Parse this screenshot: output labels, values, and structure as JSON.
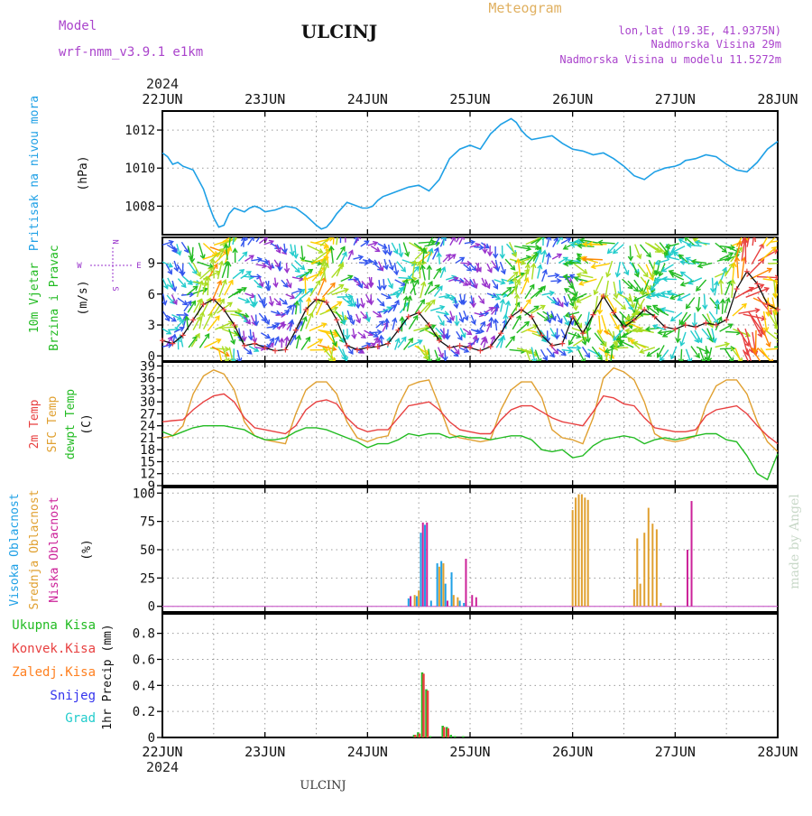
{
  "header": {
    "model_label": "Model",
    "model_name": "wrf-nmm_v3.9.1 e1km",
    "station": "ULCINJ",
    "meteogram": "Meteogram",
    "lonlat": "lon,lat (19.3E, 41.9375N)",
    "elev": "Nadmorska Visina 29m",
    "elev_model": "Nadmorska Visina u modelu 11.5272m",
    "year_top": "2024",
    "year_bottom": "2024",
    "footer_station": "ULCINJ",
    "credit": "made by Angel"
  },
  "colors": {
    "pressure": "#1ea0e6",
    "wind_label": "#22bb22",
    "temp2m": "#e84040",
    "sfc_temp": "#e0a030",
    "dewpoint": "#22bb22",
    "high_cloud": "#1ea0e6",
    "mid_cloud": "#e0a030",
    "low_cloud": "#cc2299",
    "total_precip": "#22bb22",
    "conv_precip": "#e84040",
    "frozen_precip": "#ff8020",
    "snow": "#3333ee",
    "hail": "#22cccc",
    "wind_compass": "#9933cc",
    "header_purple": "#aa44cc",
    "header_orange": "#e0b060"
  },
  "chart_data": [
    {
      "id": "pressure",
      "type": "line",
      "ylabel_lines": [
        "Pritisak na nivou mora",
        "(hPa)"
      ],
      "ylim": [
        1006.5,
        1013
      ],
      "yticks": [
        1008,
        1010,
        1012
      ],
      "x_tick_labels": [
        "22JUN",
        "23JUN",
        "24JUN",
        "25JUN",
        "26JUN",
        "27JUN",
        "28JUN"
      ],
      "series": [
        {
          "x": [
            0,
            0.05,
            0.1,
            0.15,
            0.2,
            0.3,
            0.4,
            0.45,
            0.5,
            0.55,
            0.6,
            0.65,
            0.7,
            0.75,
            0.8,
            0.85,
            0.9,
            0.95,
            1.0,
            1.1,
            1.2,
            1.3,
            1.4,
            1.5,
            1.55,
            1.6,
            1.65,
            1.7,
            1.8,
            1.85,
            1.9,
            1.95,
            2.0,
            2.05,
            2.1,
            2.15,
            2.2,
            2.3,
            2.4,
            2.5,
            2.6,
            2.7,
            2.8,
            2.9,
            3.0,
            3.1,
            3.2,
            3.3,
            3.4,
            3.45,
            3.5,
            3.55,
            3.6,
            3.7,
            3.8,
            3.9,
            4.0,
            4.1,
            4.2,
            4.3,
            4.4,
            4.5,
            4.6,
            4.7,
            4.8,
            4.9,
            5.0,
            5.05,
            5.1,
            5.2,
            5.3,
            5.4,
            5.5,
            5.6,
            5.7,
            5.8,
            5.9,
            6.0
          ],
          "values": [
            1010.8,
            1010.6,
            1010.2,
            1010.3,
            1010.1,
            1009.9,
            1008.9,
            1008.1,
            1007.4,
            1006.9,
            1007.0,
            1007.6,
            1007.9,
            1007.8,
            1007.7,
            1007.9,
            1008.0,
            1007.9,
            1007.7,
            1007.8,
            1008.0,
            1007.9,
            1007.5,
            1007.0,
            1006.8,
            1006.9,
            1007.2,
            1007.6,
            1008.2,
            1008.1,
            1008.0,
            1007.9,
            1007.9,
            1008.0,
            1008.3,
            1008.5,
            1008.6,
            1008.8,
            1009.0,
            1009.1,
            1008.8,
            1009.4,
            1010.5,
            1011.0,
            1011.2,
            1011.0,
            1011.8,
            1012.3,
            1012.6,
            1012.4,
            1012.0,
            1011.7,
            1011.5,
            1011.6,
            1011.7,
            1011.3,
            1011.0,
            1010.9,
            1010.7,
            1010.8,
            1010.5,
            1010.1,
            1009.6,
            1009.4,
            1009.8,
            1010.0,
            1010.1,
            1010.2,
            1010.4,
            1010.5,
            1010.7,
            1010.6,
            1010.2,
            1009.9,
            1009.8,
            1010.3,
            1011.0,
            1011.4
          ]
        }
      ]
    },
    {
      "id": "wind",
      "type": "line",
      "ylabel_lines": [
        "10m Vjetar",
        "Brzina i Pravac",
        "(m/s)"
      ],
      "ylim": [
        -0.5,
        11.5
      ],
      "yticks": [
        0,
        3,
        6,
        9
      ],
      "compass": {
        "n": "N",
        "s": "S",
        "e": "E",
        "w": "W"
      },
      "series": [
        {
          "name": "speed",
          "x": [
            0,
            0.1,
            0.2,
            0.3,
            0.4,
            0.5,
            0.6,
            0.7,
            0.8,
            0.9,
            1.0,
            1.1,
            1.2,
            1.3,
            1.4,
            1.5,
            1.6,
            1.7,
            1.8,
            1.9,
            2.0,
            2.1,
            2.2,
            2.3,
            2.4,
            2.5,
            2.6,
            2.7,
            2.8,
            2.9,
            3.0,
            3.1,
            3.2,
            3.3,
            3.4,
            3.5,
            3.6,
            3.7,
            3.8,
            3.9,
            4.0,
            4.1,
            4.2,
            4.3,
            4.4,
            4.5,
            4.6,
            4.7,
            4.8,
            4.9,
            5.0,
            5.1,
            5.2,
            5.3,
            5.4,
            5.5,
            5.6,
            5.7,
            5.8,
            5.9,
            6.0
          ],
          "values": [
            1.5,
            1.2,
            2.0,
            3.5,
            5.0,
            5.5,
            4.5,
            3.0,
            1.0,
            1.2,
            0.8,
            0.5,
            0.6,
            2.5,
            4.5,
            5.5,
            5.2,
            3.5,
            1.0,
            0.6,
            0.8,
            0.9,
            1.2,
            2.5,
            3.8,
            4.2,
            3.0,
            1.5,
            0.8,
            1.0,
            0.8,
            0.5,
            0.9,
            2.2,
            3.8,
            4.5,
            3.8,
            2.0,
            1.0,
            1.2,
            3.8,
            2.2,
            4.0,
            5.8,
            4.2,
            2.8,
            3.5,
            4.5,
            3.8,
            2.8,
            2.6,
            3.0,
            2.8,
            3.2,
            3.0,
            3.5,
            6.5,
            8.2,
            7.0,
            5.0,
            4.5
          ]
        }
      ]
    },
    {
      "id": "temp",
      "type": "line",
      "ylabel_lines": [
        "2m Temp",
        "SFC Temp",
        "dewpt Temp",
        "(C)"
      ],
      "ylim": [
        9,
        40
      ],
      "yticks": [
        9,
        12,
        15,
        18,
        21,
        24,
        27,
        30,
        33,
        36,
        39
      ],
      "series": [
        {
          "name": "2m Temp",
          "x": [
            0,
            0.1,
            0.2,
            0.3,
            0.4,
            0.5,
            0.6,
            0.7,
            0.8,
            0.9,
            1.0,
            1.1,
            1.2,
            1.3,
            1.4,
            1.5,
            1.6,
            1.7,
            1.8,
            1.9,
            2.0,
            2.1,
            2.2,
            2.3,
            2.4,
            2.5,
            2.6,
            2.7,
            2.8,
            2.9,
            3.0,
            3.1,
            3.2,
            3.3,
            3.4,
            3.5,
            3.6,
            3.7,
            3.8,
            3.9,
            4.0,
            4.1,
            4.2,
            4.3,
            4.4,
            4.5,
            4.6,
            4.7,
            4.8,
            4.9,
            5.0,
            5.1,
            5.2,
            5.3,
            5.4,
            5.5,
            5.6,
            5.7,
            5.8,
            5.9,
            6.0
          ],
          "values": [
            25.0,
            25.3,
            25.5,
            28.0,
            30.0,
            31.5,
            32.0,
            30.0,
            26.0,
            23.5,
            23.0,
            22.5,
            22.0,
            24.0,
            28.0,
            30.0,
            30.5,
            29.5,
            26.0,
            23.5,
            22.5,
            23.0,
            23.0,
            26.0,
            29.0,
            29.5,
            30.0,
            28.0,
            25.0,
            23.0,
            22.5,
            22.0,
            22.0,
            25.5,
            28.0,
            29.0,
            29.0,
            27.5,
            26.0,
            25.0,
            24.5,
            24.0,
            27.5,
            31.5,
            31.0,
            29.5,
            29.0,
            26.0,
            23.5,
            23.0,
            22.5,
            22.5,
            23.0,
            26.5,
            28.0,
            28.5,
            29.0,
            27.0,
            24.0,
            21.5,
            19.5
          ]
        },
        {
          "name": "SFC Temp",
          "x": [
            0,
            0.1,
            0.2,
            0.3,
            0.4,
            0.5,
            0.6,
            0.7,
            0.8,
            0.9,
            1.0,
            1.1,
            1.2,
            1.3,
            1.4,
            1.5,
            1.6,
            1.7,
            1.8,
            1.9,
            2.0,
            2.1,
            2.2,
            2.3,
            2.4,
            2.5,
            2.6,
            2.7,
            2.8,
            2.9,
            3.0,
            3.1,
            3.2,
            3.3,
            3.4,
            3.5,
            3.6,
            3.7,
            3.8,
            3.9,
            4.0,
            4.1,
            4.2,
            4.3,
            4.4,
            4.5,
            4.6,
            4.7,
            4.8,
            4.9,
            5.0,
            5.1,
            5.2,
            5.3,
            5.4,
            5.5,
            5.6,
            5.7,
            5.8,
            5.9,
            6.0
          ],
          "values": [
            21.0,
            21.5,
            24.0,
            32.0,
            36.5,
            38.0,
            37.0,
            33.0,
            25.0,
            21.5,
            20.5,
            20.0,
            19.5,
            27.0,
            33.0,
            35.0,
            35.0,
            32.0,
            25.0,
            21.0,
            20.0,
            21.0,
            21.5,
            29.0,
            34.0,
            35.0,
            35.5,
            29.0,
            22.0,
            21.0,
            20.5,
            20.0,
            20.5,
            28.0,
            33.0,
            35.0,
            35.0,
            31.0,
            23.0,
            21.0,
            20.5,
            19.5,
            26.0,
            36.0,
            38.5,
            37.5,
            35.5,
            30.0,
            22.0,
            20.5,
            20.0,
            20.5,
            21.5,
            29.0,
            34.0,
            35.5,
            35.5,
            32.0,
            25.0,
            20.0,
            17.5
          ]
        },
        {
          "name": "dewpt Temp",
          "x": [
            0,
            0.1,
            0.2,
            0.3,
            0.4,
            0.5,
            0.6,
            0.7,
            0.8,
            0.9,
            1.0,
            1.1,
            1.2,
            1.3,
            1.4,
            1.5,
            1.6,
            1.7,
            1.8,
            1.9,
            2.0,
            2.1,
            2.2,
            2.3,
            2.4,
            2.5,
            2.6,
            2.7,
            2.8,
            2.9,
            3.0,
            3.1,
            3.2,
            3.3,
            3.4,
            3.5,
            3.6,
            3.7,
            3.8,
            3.9,
            4.0,
            4.1,
            4.2,
            4.3,
            4.4,
            4.5,
            4.6,
            4.7,
            4.8,
            4.9,
            5.0,
            5.1,
            5.2,
            5.3,
            5.4,
            5.5,
            5.6,
            5.7,
            5.8,
            5.9,
            6.0
          ],
          "values": [
            22.5,
            21.5,
            22.5,
            23.5,
            24.0,
            24.0,
            24.0,
            23.5,
            23.0,
            21.5,
            20.5,
            20.5,
            21.0,
            22.5,
            23.5,
            23.5,
            23.0,
            22.0,
            21.0,
            20.0,
            18.5,
            19.5,
            19.5,
            20.5,
            22.0,
            21.5,
            22.0,
            22.0,
            21.0,
            21.5,
            21.0,
            21.0,
            20.5,
            21.0,
            21.5,
            21.5,
            20.5,
            18.0,
            17.5,
            18.0,
            16.0,
            16.5,
            19.0,
            20.5,
            21.0,
            21.5,
            21.0,
            19.5,
            20.5,
            21.0,
            20.5,
            21.0,
            21.5,
            22.0,
            22.0,
            20.5,
            20.0,
            16.5,
            12.0,
            10.5,
            17.0
          ]
        }
      ]
    },
    {
      "id": "cloud",
      "type": "bar",
      "ylabel_lines": [
        "Visoka Oblacnost",
        "Srednja Oblacnost",
        "Niska Oblacnost",
        "(%)"
      ],
      "ylim": [
        -5,
        105
      ],
      "yticks": [
        0,
        25,
        50,
        75,
        100
      ],
      "series": [
        {
          "name": "Visoka Oblacnost",
          "x": [
            2.4,
            2.48,
            2.52,
            2.56,
            2.62,
            2.68,
            2.72,
            2.76,
            2.82,
            2.9,
            2.94
          ],
          "values": [
            7,
            9,
            65,
            72,
            5,
            38,
            40,
            20,
            30,
            5,
            3
          ]
        },
        {
          "name": "Srednja Oblacnost",
          "x": [
            2.46,
            2.5,
            2.7,
            2.74,
            2.84,
            2.88,
            4.0,
            4.03,
            4.06,
            4.09,
            4.12,
            4.15,
            4.6,
            4.63,
            4.66,
            4.7,
            4.74,
            4.78,
            4.82,
            4.86
          ],
          "values": [
            10,
            14,
            35,
            38,
            10,
            8,
            85,
            96,
            99,
            99,
            96,
            94,
            15,
            60,
            20,
            65,
            87,
            73,
            68,
            3
          ]
        },
        {
          "name": "Niska Oblacnost",
          "x": [
            2.42,
            2.54,
            2.58,
            2.78,
            2.96,
            3.02,
            3.06,
            5.12,
            5.16
          ],
          "values": [
            9,
            74,
            74,
            5,
            42,
            10,
            8,
            50,
            93
          ]
        }
      ]
    },
    {
      "id": "precip",
      "type": "bar",
      "ylabel_lines": [
        "Ukupna Kisa",
        "Konvek.Kisa",
        "Zaledj.Kisa",
        "Snijeg",
        "Grad",
        "1hr Precip (mm)"
      ],
      "ylim": [
        0,
        0.95
      ],
      "yticks": [
        0,
        0.2,
        0.4,
        0.6,
        0.8
      ],
      "series": [
        {
          "name": "Ukupna Kisa",
          "x": [
            2.46,
            2.5,
            2.54,
            2.58,
            2.62,
            2.74,
            2.78,
            2.82,
            2.86,
            2.94
          ],
          "values": [
            0.02,
            0.04,
            0.5,
            0.37,
            0.01,
            0.09,
            0.08,
            0.02,
            0.01,
            0.01
          ]
        },
        {
          "name": "Konvek.Kisa",
          "x": [
            2.46,
            2.5,
            2.54,
            2.58,
            2.74,
            2.78
          ],
          "values": [
            0.02,
            0.03,
            0.49,
            0.36,
            0.08,
            0.07
          ]
        }
      ]
    }
  ]
}
